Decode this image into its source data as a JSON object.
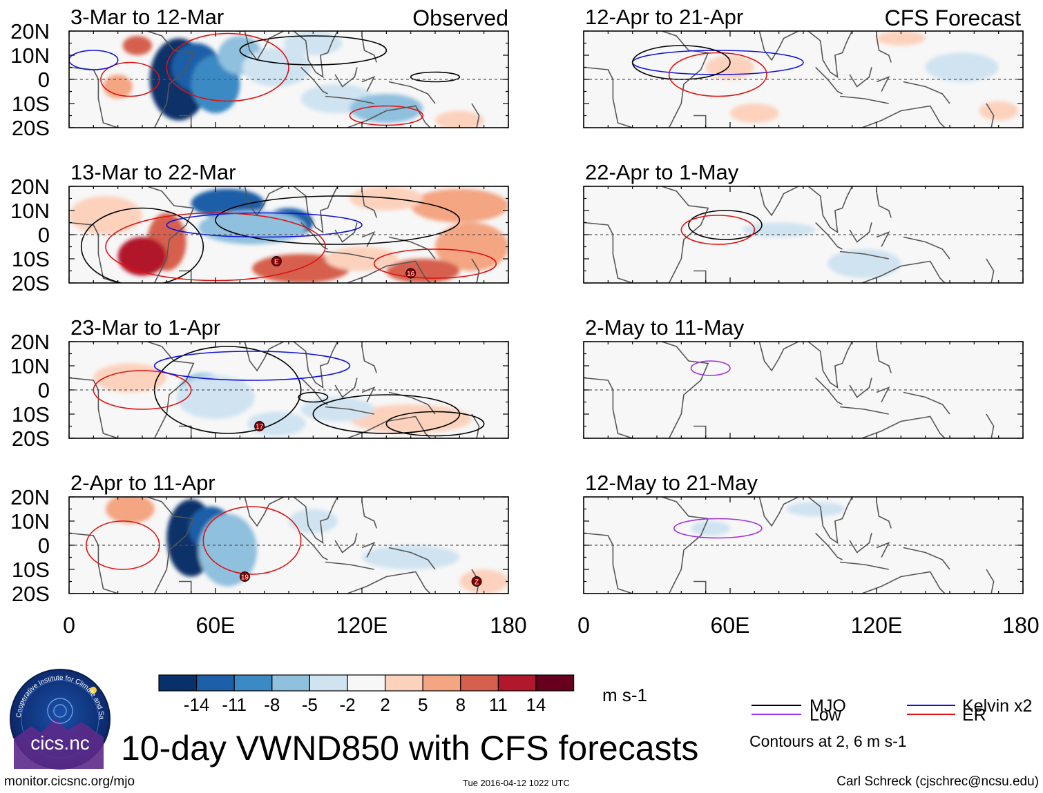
{
  "figure": {
    "title": "10-day VWND850 with CFS forecasts",
    "url": "monitor.cicsnc.org/mjo",
    "timestamp": "Tue 2016-04-12 1022 UTC",
    "author": "Carl Schreck (cjschrec@ncsu.edu)",
    "logo_text": "cics.nc",
    "logo_ring_text": "Cooperative Institute for Climate and Satellites"
  },
  "chart_data": {
    "type": "heatmap",
    "variable": "VWND850",
    "units": "m s-1",
    "column_headers": [
      "Observed",
      "CFS Forecast"
    ],
    "y_ticks": [
      "20N",
      "10N",
      "0",
      "10S",
      "20S"
    ],
    "x_ticks": [
      "0",
      "60E",
      "120E",
      "180"
    ],
    "xlim": [
      0,
      180
    ],
    "ylim": [
      -20,
      20
    ],
    "panels": [
      {
        "label": "3-Mar to 12-Mar",
        "column": "Observed"
      },
      {
        "label": "13-Mar to 22-Mar",
        "column": "Observed"
      },
      {
        "label": "23-Mar to 1-Apr",
        "column": "Observed"
      },
      {
        "label": "2-Apr to 11-Apr",
        "column": "Observed"
      },
      {
        "label": "12-Apr to 21-Apr",
        "column": "CFS Forecast"
      },
      {
        "label": "22-Apr to 1-May",
        "column": "CFS Forecast"
      },
      {
        "label": "2-May to 11-May",
        "column": "CFS Forecast"
      },
      {
        "label": "12-May to 21-May",
        "column": "CFS Forecast"
      }
    ],
    "colorbar": {
      "ticks": [
        "-14",
        "-11",
        "-8",
        "-5",
        "-2",
        "2",
        "5",
        "8",
        "11",
        "14"
      ],
      "colors": [
        "#08306b",
        "#1d5fa8",
        "#3b8ac4",
        "#8fc0de",
        "#cfe3f1",
        "#f7f7f7",
        "#fcd2bd",
        "#f4a582",
        "#d6604d",
        "#b2182b",
        "#67001f"
      ]
    },
    "legend": {
      "entries": [
        {
          "name": "MJO",
          "color": "#000000"
        },
        {
          "name": "Kelvin x2",
          "color": "#1010dd"
        },
        {
          "name": "Low",
          "color": "#a030e0"
        },
        {
          "name": "ER",
          "color": "#e01010"
        }
      ],
      "note": "Contours at 2, 6 m s-1"
    },
    "storm_markers": [
      {
        "panel": "13-Mar to 22-Mar",
        "label": "E",
        "lon": 85,
        "lat": -11
      },
      {
        "panel": "13-Mar to 22-Mar",
        "label": "16",
        "lon": 140,
        "lat": -16
      },
      {
        "panel": "23-Mar to 1-Apr",
        "label": "17",
        "lon": 78,
        "lat": -15
      },
      {
        "panel": "2-Apr to 11-Apr",
        "label": "19",
        "lon": 72,
        "lat": -13
      },
      {
        "panel": "2-Apr to 11-Apr",
        "label": "Z",
        "lon": 167,
        "lat": -15
      }
    ]
  }
}
